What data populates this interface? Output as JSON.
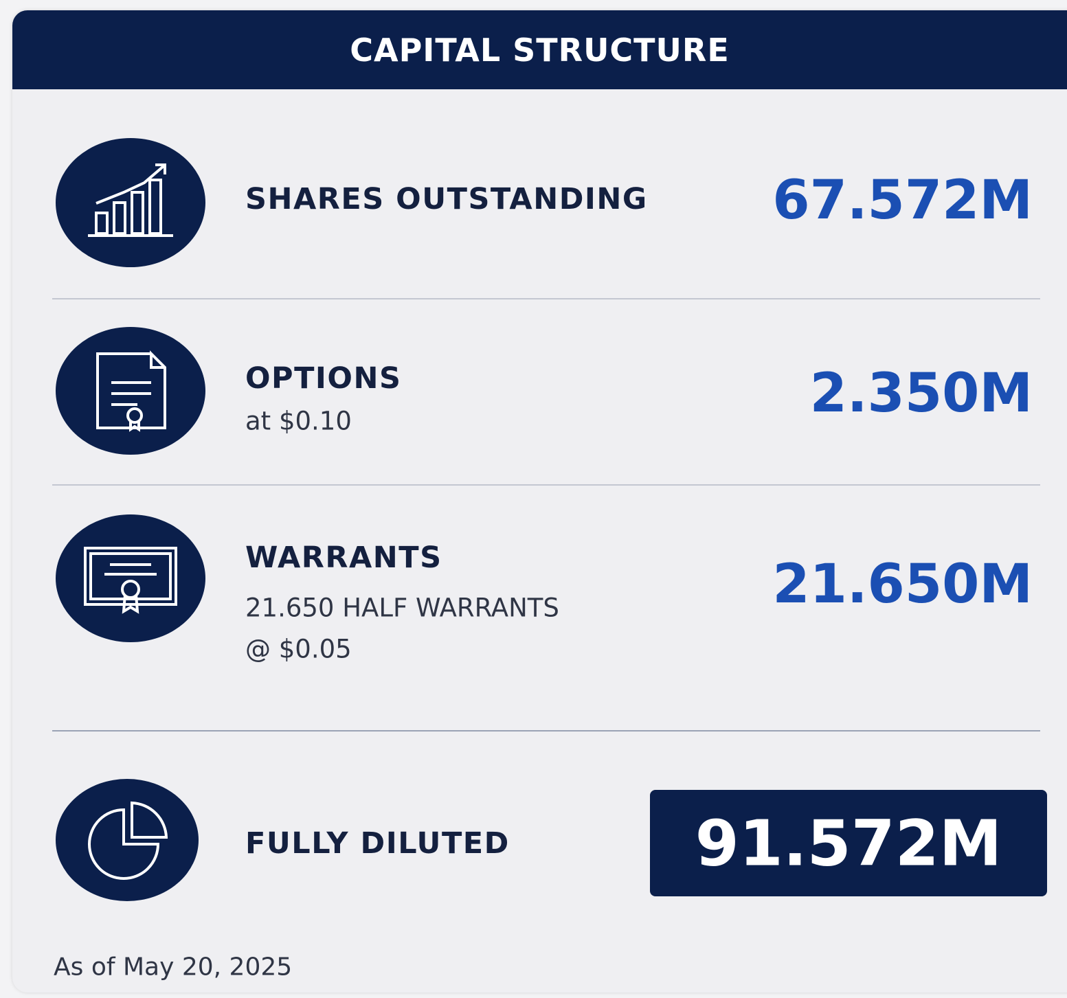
{
  "header": {
    "title": "CAPITAL STRUCTURE"
  },
  "rows": [
    {
      "label": "SHARES OUTSTANDING",
      "value": "67.572M"
    },
    {
      "label": "OPTIONS",
      "details": [
        "at $0.10"
      ],
      "value": "2.350M"
    },
    {
      "label": "WARRANTS",
      "details": [
        "21.650 HALF WARRANTS",
        "@ $0.05"
      ],
      "value": "21.650M"
    }
  ],
  "total": {
    "label": "FULLY DILUTED",
    "value": "91.572M"
  },
  "footnote": "As of May 20, 2025"
}
